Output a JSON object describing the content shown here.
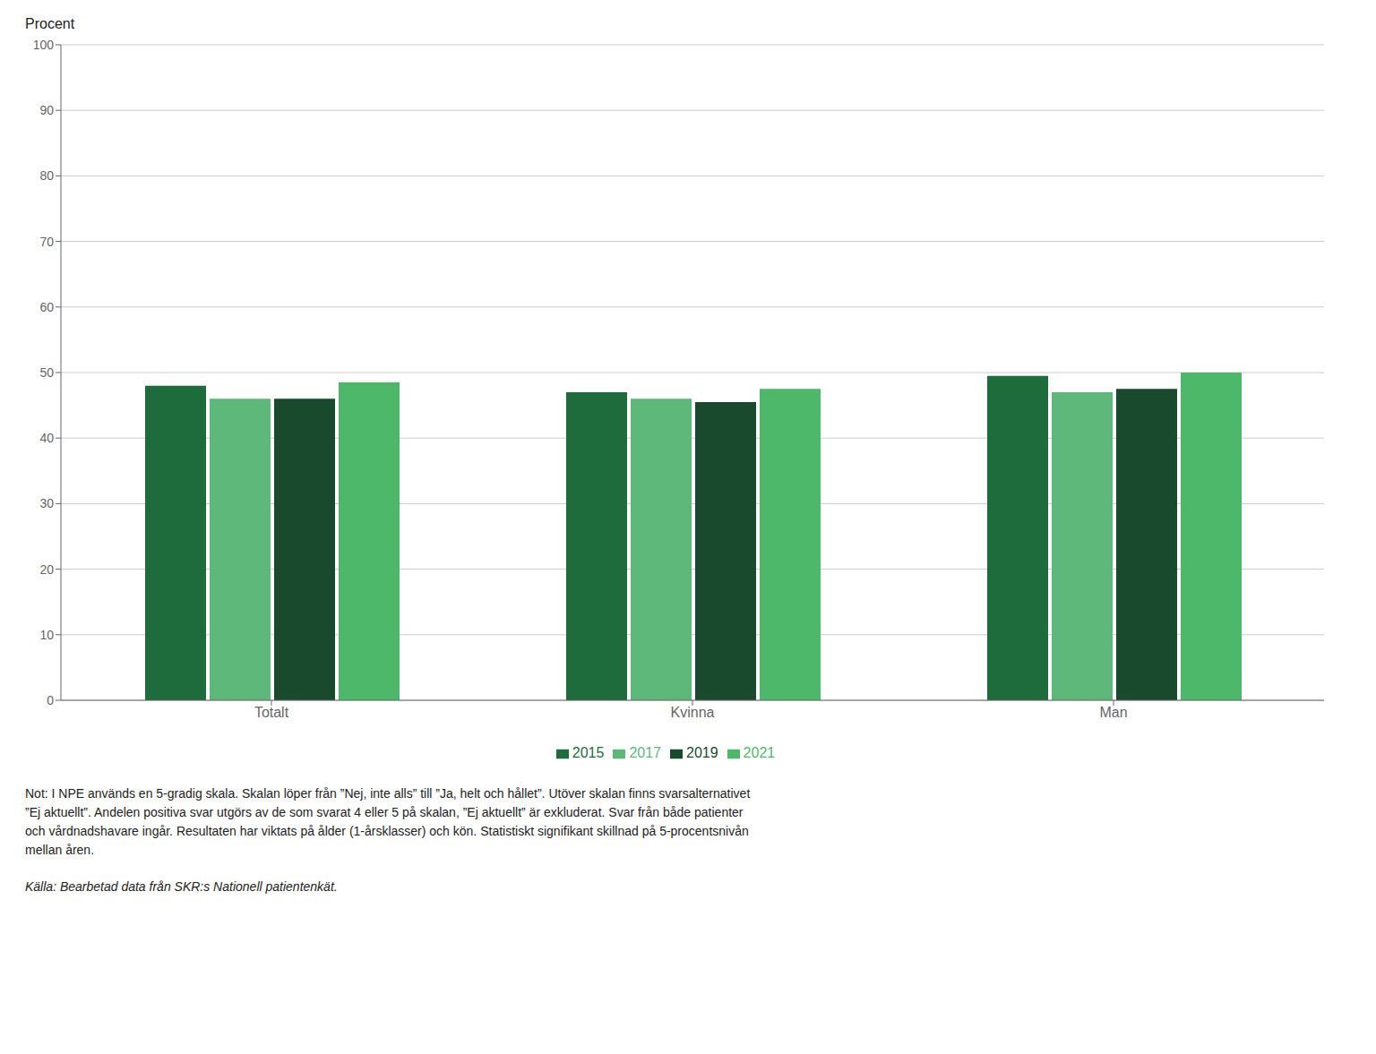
{
  "chart_data": {
    "type": "bar",
    "ylabel": "Procent",
    "categories": [
      "Totalt",
      "Kvinna",
      "Man"
    ],
    "series": [
      {
        "name": "2015",
        "color": "#1e6b3c",
        "values": [
          48.0,
          47.0,
          49.5
        ]
      },
      {
        "name": "2017",
        "color": "#5db87a",
        "values": [
          46.0,
          46.0,
          47.0
        ]
      },
      {
        "name": "2019",
        "color": "#1a4a2e",
        "values": [
          46.0,
          45.5,
          47.5
        ]
      },
      {
        "name": "2021",
        "color": "#4db86a",
        "values": [
          48.5,
          47.5,
          50.0
        ]
      }
    ],
    "ylim": [
      0,
      100
    ],
    "yticks": [
      0,
      10,
      20,
      30,
      40,
      50,
      60,
      70,
      80,
      90,
      100
    ],
    "grid": true,
    "legend": "bottom",
    "annotations": [
      "Not: I NPE används en 5-gradig skala. Skalan löper från ”Nej, inte alls” till ”Ja, helt och hållet”. Utöver skalan finns svarsalternativet\n”Ej aktuellt”. Andelen positiva svar utgörs av de som svarat 4 eller 5 på skalan, ”Ej aktuellt” är exkluderat. Svar från både patienter\noch vårdnadshavare ingår. Resultaten har viktats på ålder (1-årsklasser) och kön. Statistiskt signifikant skillnad på 5-procentsnivån\nmellan åren.",
      "Källa: Bearbetad data från SKR:s Nationell patientenkät."
    ]
  }
}
